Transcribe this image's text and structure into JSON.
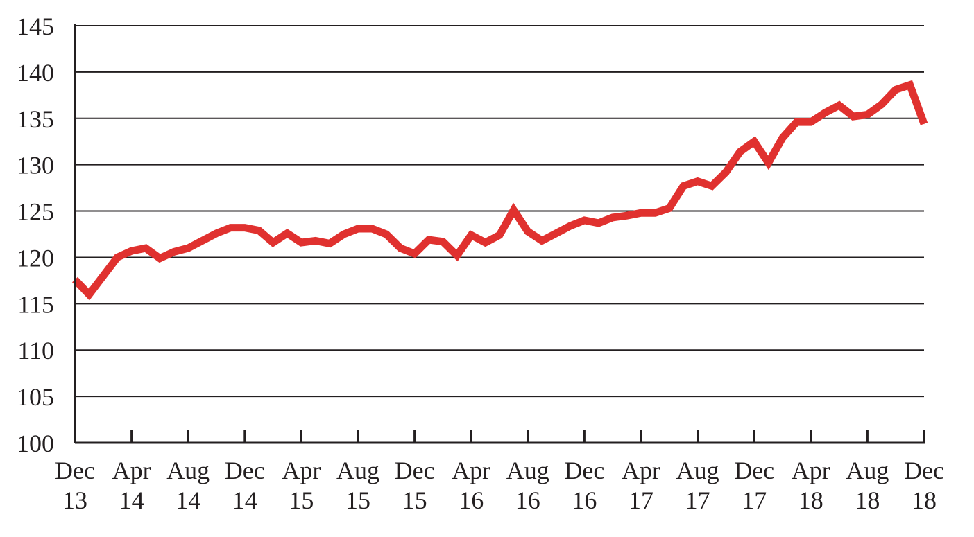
{
  "chart_data": {
    "type": "line",
    "title": "",
    "xlabel": "",
    "ylabel": "",
    "ylim": [
      100,
      145
    ],
    "yticks": [
      "100",
      "105",
      "110",
      "115",
      "120",
      "125",
      "130",
      "135",
      "140",
      "145"
    ],
    "xticks": [
      {
        "month": "Dec",
        "year": "13"
      },
      {
        "month": "Apr",
        "year": "14"
      },
      {
        "month": "Aug",
        "year": "14"
      },
      {
        "month": "Dec",
        "year": "14"
      },
      {
        "month": "Apr",
        "year": "15"
      },
      {
        "month": "Aug",
        "year": "15"
      },
      {
        "month": "Dec",
        "year": "15"
      },
      {
        "month": "Apr",
        "year": "16"
      },
      {
        "month": "Aug",
        "year": "16"
      },
      {
        "month": "Dec",
        "year": "16"
      },
      {
        "month": "Apr",
        "year": "17"
      },
      {
        "month": "Aug",
        "year": "17"
      },
      {
        "month": "Dec",
        "year": "17"
      },
      {
        "month": "Apr",
        "year": "18"
      },
      {
        "month": "Aug",
        "year": "18"
      },
      {
        "month": "Dec",
        "year": "18"
      }
    ],
    "grid": true,
    "legend": "none",
    "line_color": "#e0312f",
    "series": [
      {
        "x": [
          "Dec 13",
          "Jan 14",
          "Feb 14",
          "Mar 14",
          "Apr 14",
          "May 14",
          "Jun 14",
          "Jul 14",
          "Aug 14",
          "Sep 14",
          "Oct 14",
          "Nov 14",
          "Dec 14",
          "Jan 15",
          "Feb 15",
          "Mar 15",
          "Apr 15",
          "May 15",
          "Jun 15",
          "Jul 15",
          "Aug 15",
          "Sep 15",
          "Oct 15",
          "Nov 15",
          "Dec 15",
          "Jan 16",
          "Feb 16",
          "Mar 16",
          "Apr 16",
          "May 16",
          "Jun 16",
          "Jul 16",
          "Aug 16",
          "Sep 16",
          "Oct 16",
          "Nov 16",
          "Dec 16",
          "Jan 17",
          "Feb 17",
          "Mar 17",
          "Apr 17",
          "May 17",
          "Jun 17",
          "Jul 17",
          "Aug 17",
          "Sep 17",
          "Oct 17",
          "Nov 17",
          "Dec 17",
          "Jan 18",
          "Feb 18",
          "Mar 18",
          "Apr 18",
          "May 18",
          "Jun 18",
          "Jul 18",
          "Aug 18",
          "Sep 18",
          "Oct 18",
          "Nov 18",
          "Dec 18"
        ],
        "values": [
          117.6,
          116.0,
          118.0,
          120.0,
          120.7,
          121.0,
          119.9,
          120.6,
          121.0,
          121.8,
          122.6,
          123.2,
          123.2,
          122.9,
          121.6,
          122.6,
          121.6,
          121.8,
          121.5,
          122.5,
          123.1,
          123.1,
          122.5,
          121.0,
          120.4,
          121.9,
          121.7,
          120.2,
          122.4,
          121.6,
          122.4,
          125.1,
          122.8,
          121.8,
          122.6,
          123.4,
          124.0,
          123.7,
          124.3,
          124.5,
          124.8,
          124.8,
          125.3,
          127.7,
          128.2,
          127.7,
          129.2,
          131.4,
          132.5,
          130.2,
          132.9,
          134.6,
          134.6,
          135.6,
          136.4,
          135.2,
          135.4,
          136.5,
          138.1,
          138.6,
          134.4
        ]
      }
    ]
  }
}
